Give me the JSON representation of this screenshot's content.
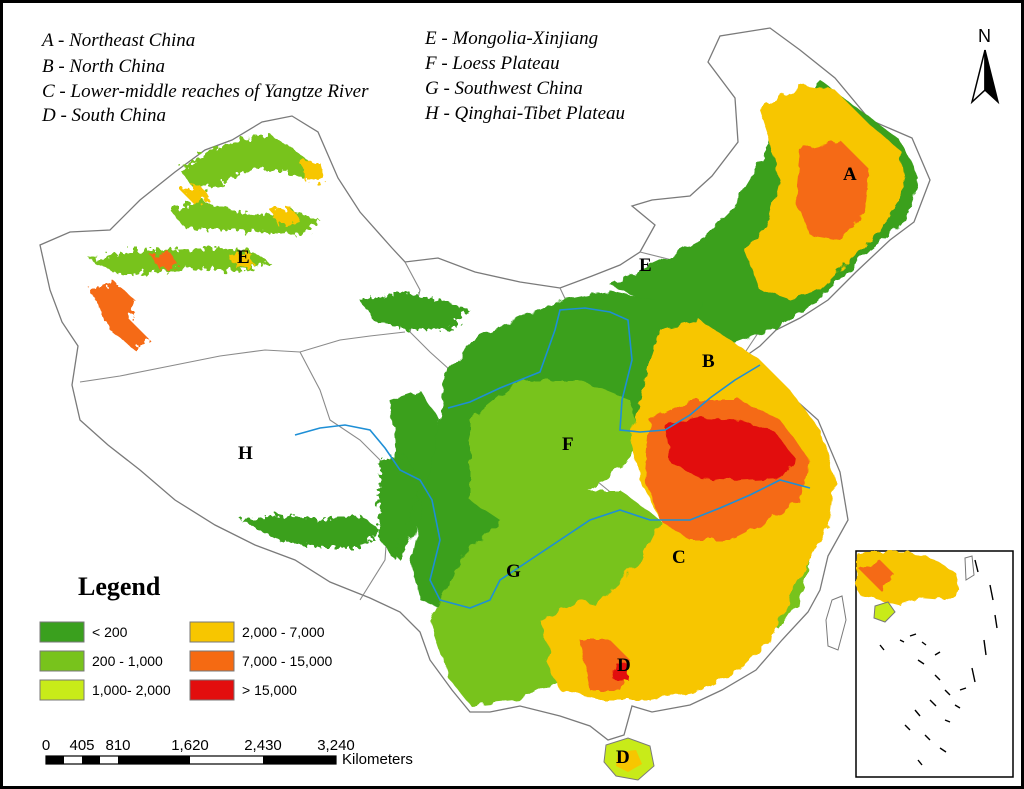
{
  "region_key": [
    "A - Northeast China",
    "B - North China",
    "C - Lower-middle reaches of Yangtze River",
    "D - South China",
    "E - Mongolia-Xinjiang",
    "F - Loess Plateau",
    "G - Southwest China",
    "H - Qinghai-Tibet Plateau"
  ],
  "north_arrow": "N",
  "legend": {
    "title": "Legend",
    "classes": [
      {
        "label": "< 200",
        "color": "#3aa01e"
      },
      {
        "label": "200 - 1,000",
        "color": "#78c31c"
      },
      {
        "label": "1,000- 2,000",
        "color": "#c8eb19"
      },
      {
        "label": "2,000 - 7,000",
        "color": "#f7c600"
      },
      {
        "label": "7,000 - 15,000",
        "color": "#f56a12"
      },
      {
        "label": "> 15,000",
        "color": "#e20e0e"
      }
    ]
  },
  "region_labels": [
    "A",
    "B",
    "C",
    "D",
    "D",
    "E",
    "E",
    "F",
    "G",
    "H"
  ],
  "scale_bar": {
    "ticks": [
      "0",
      "405",
      "810",
      "1,620",
      "2,430",
      "3,240"
    ],
    "unit": "Kilometers"
  },
  "colors": {
    "boundary": "#888888",
    "river": "#1e8fd6",
    "water": "#ffffff"
  }
}
